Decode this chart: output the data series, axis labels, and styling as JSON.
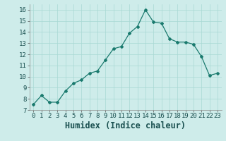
{
  "title": "",
  "xlabel": "Humidex (Indice chaleur)",
  "x": [
    0,
    1,
    2,
    3,
    4,
    5,
    6,
    7,
    8,
    9,
    10,
    11,
    12,
    13,
    14,
    15,
    16,
    17,
    18,
    19,
    20,
    21,
    22,
    23
  ],
  "y": [
    7.5,
    8.3,
    7.7,
    7.7,
    8.7,
    9.4,
    9.7,
    10.3,
    10.5,
    11.5,
    12.5,
    12.7,
    13.9,
    14.5,
    16.0,
    14.9,
    14.8,
    13.4,
    13.1,
    13.1,
    12.9,
    11.8,
    10.1,
    10.3
  ],
  "line_color": "#1a7a6e",
  "marker": "D",
  "marker_size": 2.0,
  "bg_color": "#ceecea",
  "grid_color": "#a8d8d4",
  "ylim": [
    7,
    16.5
  ],
  "xlim": [
    -0.5,
    23.5
  ],
  "yticks": [
    7,
    8,
    9,
    10,
    11,
    12,
    13,
    14,
    15,
    16
  ],
  "xticks": [
    0,
    1,
    2,
    3,
    4,
    5,
    6,
    7,
    8,
    9,
    10,
    11,
    12,
    13,
    14,
    15,
    16,
    17,
    18,
    19,
    20,
    21,
    22,
    23
  ],
  "tick_fontsize": 6.5,
  "xlabel_fontsize": 8.5
}
